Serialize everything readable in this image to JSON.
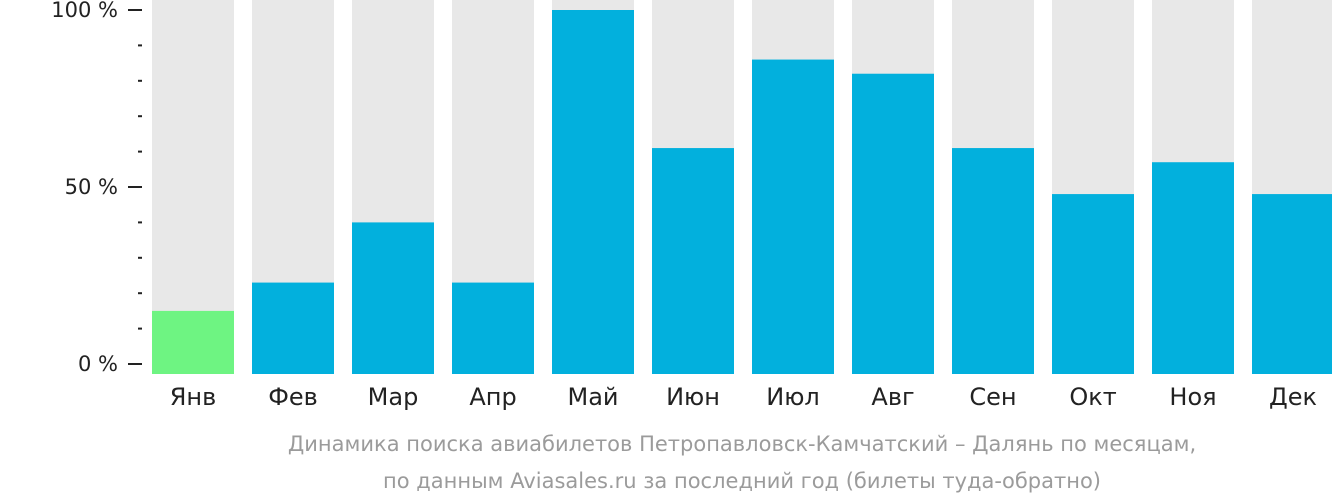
{
  "chart_data": {
    "type": "bar",
    "categories": [
      "Янв",
      "Фев",
      "Мар",
      "Апр",
      "Май",
      "Июн",
      "Июл",
      "Авг",
      "Сен",
      "Окт",
      "Ноя",
      "Дек"
    ],
    "values": [
      15,
      23,
      40,
      23,
      100,
      61,
      86,
      82,
      61,
      48,
      57,
      48
    ],
    "ylim": [
      0,
      100
    ],
    "yticks": [
      {
        "value": 100,
        "label": "100 %"
      },
      {
        "value": 50,
        "label": "50 %"
      },
      {
        "value": 0,
        "label": "0 %"
      }
    ],
    "minor_tick_step": 10,
    "highlight_index": 0,
    "colors": {
      "bar": "#02b0dd",
      "highlight": "#6ef482",
      "track": "#e8e8e8",
      "axis": "#222222"
    },
    "caption": [
      "Динамика поиска авиабилетов Петропавловск-Камчатский – Далянь по месяцам,",
      "по данным Aviasales.ru за последний год (билеты туда-обратно)"
    ]
  }
}
